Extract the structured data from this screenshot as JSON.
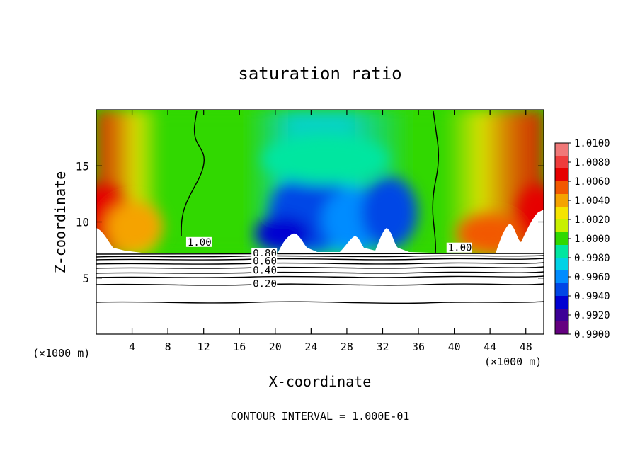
{
  "chart_data": {
    "type": "heatmap",
    "title": "saturation ratio",
    "xlabel": "X-coordinate",
    "ylabel": "Z-coordinate",
    "x_unit": "(×1000 m)",
    "z_unit": "(×1000 m)",
    "xlim": [
      0,
      50
    ],
    "ylim": [
      0,
      20
    ],
    "x_ticks": [
      4,
      8,
      12,
      16,
      20,
      24,
      28,
      32,
      36,
      40,
      44,
      48
    ],
    "y_ticks": [
      5,
      10,
      15
    ],
    "footer": "CONTOUR INTERVAL = 1.000E-01",
    "colorbar": {
      "levels": [
        "1.0100",
        "1.0080",
        "1.0060",
        "1.0040",
        "1.0020",
        "1.0000",
        "0.9980",
        "0.9960",
        "0.9940",
        "0.9920",
        "0.9900"
      ],
      "colors": [
        "#f07878",
        "#ee3c3c",
        "#e60000",
        "#f25800",
        "#f5a300",
        "#f5e400",
        "#c8f000",
        "#30d800",
        "#00e6a0",
        "#00d2e6",
        "#008cff",
        "#0046e6",
        "#0000d2",
        "#3c0096",
        "#640080"
      ]
    },
    "contour_labels": [
      {
        "text": "1.00",
        "x": 10.2,
        "z": 7.9
      },
      {
        "text": "1.00",
        "x": 39.3,
        "z": 7.4
      },
      {
        "text": "0.80",
        "x": 17.5,
        "z": 6.9
      },
      {
        "text": "0.60",
        "x": 17.5,
        "z": 6.2
      },
      {
        "text": "0.40",
        "x": 17.5,
        "z": 5.4
      },
      {
        "text": "0.20",
        "x": 17.5,
        "z": 4.2
      }
    ]
  }
}
